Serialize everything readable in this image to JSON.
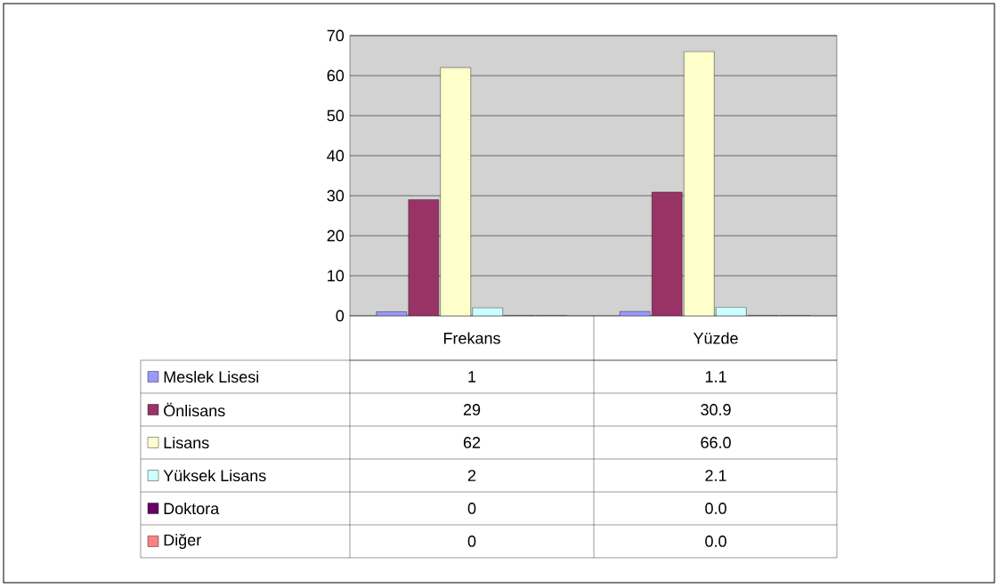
{
  "chart_data": {
    "type": "bar",
    "categories": [
      "Frekans",
      "Yüzde"
    ],
    "series": [
      {
        "name": "Meslek Lisesi",
        "color": "#9999ff",
        "values": [
          1,
          1.1
        ],
        "value_labels": [
          "1",
          "1.1"
        ]
      },
      {
        "name": "Önlisans",
        "color": "#993366",
        "values": [
          29,
          30.9
        ],
        "value_labels": [
          "29",
          "30.9"
        ]
      },
      {
        "name": "Lisans",
        "color": "#ffffcc",
        "values": [
          62,
          66.0
        ],
        "value_labels": [
          "62",
          "66.0"
        ]
      },
      {
        "name": "Yüksek Lisans",
        "color": "#ccffff",
        "values": [
          2,
          2.1
        ],
        "value_labels": [
          "2",
          "2.1"
        ]
      },
      {
        "name": "Doktora",
        "color": "#660066",
        "values": [
          0,
          0.0
        ],
        "value_labels": [
          "0",
          "0.0"
        ]
      },
      {
        "name": "Diğer",
        "color": "#ff8080",
        "values": [
          0,
          0.0
        ],
        "value_labels": [
          "0",
          "0.0"
        ]
      }
    ],
    "ylim": [
      0,
      70
    ],
    "yticks": [
      0,
      10,
      20,
      30,
      40,
      50,
      60,
      70
    ],
    "grid": "y",
    "legend": "bottom"
  }
}
